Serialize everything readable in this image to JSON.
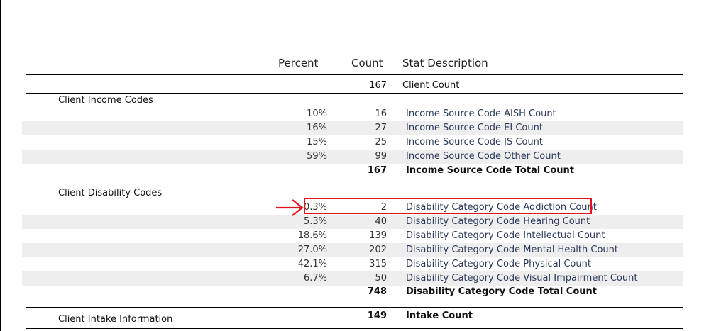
{
  "columns": {
    "percent": "Percent",
    "count": "Count",
    "description": "Stat Description"
  },
  "client_count": {
    "count": "167",
    "description": "Client Count"
  },
  "income_section": {
    "label": "Client Income Codes",
    "rows": [
      {
        "percent": "10%",
        "count": "16",
        "description": "Income Source Code AISH Count"
      },
      {
        "percent": "16%",
        "count": "27",
        "description": "Income Source Code EI Count"
      },
      {
        "percent": "15%",
        "count": "25",
        "description": "Income Source Code IS Count"
      },
      {
        "percent": "59%",
        "count": "99",
        "description": "Income Source Code Other Count"
      }
    ],
    "total": {
      "count": "167",
      "description": "Income Source Code Total Count"
    }
  },
  "disability_section": {
    "label": "Client Disability Codes",
    "rows": [
      {
        "percent": "0.3%",
        "count": "2",
        "description": "Disability Category Code Addiction Count"
      },
      {
        "percent": "5.3%",
        "count": "40",
        "description": "Disability Category Code Hearing Count"
      },
      {
        "percent": "18.6%",
        "count": "139",
        "description": "Disability Category Code Intellectual Count"
      },
      {
        "percent": "27.0%",
        "count": "202",
        "description": "Disability Category Code Mental Health Count"
      },
      {
        "percent": "42.1%",
        "count": "315",
        "description": "Disability Category Code Physical Count"
      },
      {
        "percent": "6.7%",
        "count": "50",
        "description": "Disability Category Code Visual Impairment Count"
      }
    ],
    "total": {
      "count": "748",
      "description": "Disability Category Code Total Count"
    }
  },
  "intake_section": {
    "label": "Client Intake Information",
    "total": {
      "count": "149",
      "description": "Intake Count"
    }
  },
  "annotation": {
    "color": "#e2121c"
  }
}
